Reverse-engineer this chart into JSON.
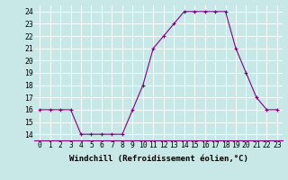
{
  "x": [
    0,
    1,
    2,
    3,
    4,
    5,
    6,
    7,
    8,
    9,
    10,
    11,
    12,
    13,
    14,
    15,
    16,
    17,
    18,
    19,
    20,
    21,
    22,
    23
  ],
  "y": [
    16,
    16,
    16,
    16,
    14,
    14,
    14,
    14,
    14,
    16,
    18,
    21,
    22,
    23,
    24,
    24,
    24,
    24,
    24,
    21,
    19,
    17,
    16,
    16
  ],
  "line_color": "#800080",
  "marker": "+",
  "background_color": "#c8e8e8",
  "grid_color": "#b0d0d0",
  "xlabel": "Windchill (Refroidissement éolien,°C)",
  "xlabel_fontsize": 6.5,
  "ylabel_ticks": [
    14,
    15,
    16,
    17,
    18,
    19,
    20,
    21,
    22,
    23,
    24
  ],
  "xlim": [
    -0.5,
    23.5
  ],
  "ylim": [
    13.5,
    24.5
  ],
  "xtick_labels": [
    "0",
    "1",
    "2",
    "3",
    "4",
    "5",
    "6",
    "7",
    "8",
    "9",
    "10",
    "11",
    "12",
    "13",
    "14",
    "15",
    "16",
    "17",
    "18",
    "19",
    "20",
    "21",
    "22",
    "23"
  ],
  "tick_fontsize": 5.8
}
